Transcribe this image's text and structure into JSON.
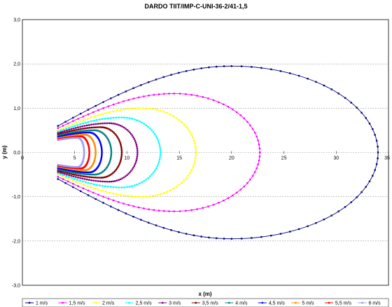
{
  "chart_data": {
    "type": "line",
    "title": "DARDO TIIT/IMP-C-UNI-36-2/41-1,5",
    "xlabel": "x (m)",
    "ylabel": "y (m)",
    "xlim": [
      0,
      35
    ],
    "ylim": [
      -3,
      3
    ],
    "x_ticks": [
      "0",
      "5",
      "10",
      "15",
      "20",
      "25",
      "30",
      "35"
    ],
    "y_ticks": [
      "3,0",
      "2,0",
      "1,0",
      "0,0",
      "-1,0",
      "-2,0",
      "-3,0"
    ],
    "grid": "horizontal dotted",
    "legend_position": "bottom",
    "nozzle_x": 3.4,
    "series": [
      {
        "name": "1 m/s",
        "color": "#000080",
        "y_start": 0.6,
        "y_max": 1.95,
        "x_max": 20.0,
        "x_end": 34.0
      },
      {
        "name": "1,5 m/s",
        "color": "#ff00ff",
        "y_start": 0.55,
        "y_max": 1.33,
        "x_max": 14.5,
        "x_end": 22.7
      },
      {
        "name": "2 m/s",
        "color": "#ffff00",
        "y_start": 0.5,
        "y_max": 1.0,
        "x_max": 11.5,
        "x_end": 16.6
      },
      {
        "name": "2,5 m/s",
        "color": "#00ffff",
        "y_start": 0.47,
        "y_max": 0.79,
        "x_max": 9.5,
        "x_end": 13.2
      },
      {
        "name": "3 m/s",
        "color": "#800080",
        "y_start": 0.44,
        "y_max": 0.66,
        "x_max": 8.3,
        "x_end": 11.0
      },
      {
        "name": "3,5 m/s",
        "color": "#800000",
        "y_start": 0.41,
        "y_max": 0.57,
        "x_max": 7.5,
        "x_end": 9.5
      },
      {
        "name": "4 m/s",
        "color": "#008080",
        "y_start": 0.38,
        "y_max": 0.5,
        "x_max": 6.9,
        "x_end": 8.5
      },
      {
        "name": "4,5 m/s",
        "color": "#0000ff",
        "y_start": 0.35,
        "y_max": 0.45,
        "x_max": 6.4,
        "x_end": 7.6
      },
      {
        "name": "5 m/s",
        "color": "#ff8c00",
        "y_start": 0.32,
        "y_max": 0.4,
        "x_max": 6.0,
        "x_end": 7.0
      },
      {
        "name": "5,5 m/s",
        "color": "#ff0000",
        "y_start": 0.3,
        "y_max": 0.36,
        "x_max": 5.6,
        "x_end": 6.4
      },
      {
        "name": "6 m/s",
        "color": "#9999ff",
        "y_start": 0.28,
        "y_max": 0.33,
        "x_max": 5.3,
        "x_end": 5.9
      }
    ]
  }
}
